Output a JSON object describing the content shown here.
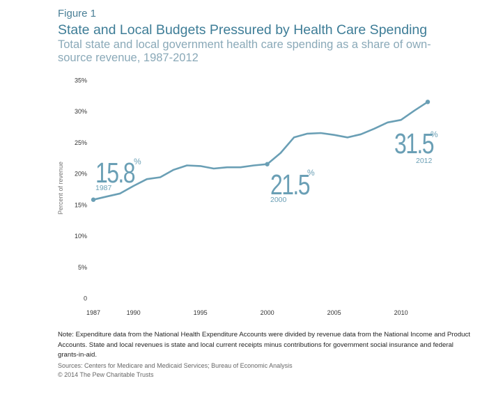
{
  "figure_label": "Figure 1",
  "title": "State and Local Budgets Pressured by Health Care Spending",
  "subtitle": "Total state and local government health care spending as a share of own-source revenue, 1987-2012",
  "note": "Note: Expenditure data from the National Health Expenditure Accounts were divided by revenue data from the National Income and Product Accounts. State and local revenues is state and local current receipts minus contributions for government social insurance and federal grants-in-aid.",
  "sources": "Sources: Centers for Medicare and Medicaid Services; Bureau of Economic Analysis",
  "copyright": "© 2014 The Pew Charitable Trusts",
  "colors": {
    "line": "#6a9fb5",
    "title": "#3e7d97",
    "subtitle": "#8aa9b8"
  },
  "chart_data": {
    "type": "line",
    "ylabel": "Percent of revenue",
    "ylim": [
      0,
      35
    ],
    "xlim": [
      1987,
      2012
    ],
    "y_ticks": [
      0,
      5,
      10,
      15,
      20,
      25,
      30,
      35
    ],
    "y_tick_labels": [
      "0",
      "5%",
      "10%",
      "15%",
      "20%",
      "25%",
      "30%",
      "35%"
    ],
    "x_ticks": [
      1987,
      1990,
      1995,
      2000,
      2005,
      2010
    ],
    "x_tick_labels": [
      "1987",
      "1990",
      "1995",
      "2000",
      "2005",
      "2010"
    ],
    "grid": false,
    "series": [
      {
        "x": [
          1987,
          1988,
          1989,
          1990,
          1991,
          1992,
          1993,
          1994,
          1995,
          1996,
          1997,
          1998,
          1999,
          2000,
          2001,
          2002,
          2003,
          2004,
          2005,
          2006,
          2007,
          2008,
          2009,
          2010,
          2011,
          2012
        ],
        "values": [
          15.8,
          16.3,
          16.8,
          18.0,
          19.1,
          19.4,
          20.6,
          21.3,
          21.2,
          20.8,
          21.0,
          21.0,
          21.3,
          21.5,
          23.3,
          25.8,
          26.4,
          26.5,
          26.2,
          25.8,
          26.3,
          27.2,
          28.2,
          28.6,
          30.1,
          31.5
        ]
      }
    ],
    "annotations": [
      {
        "x": 1987,
        "big": "15.8",
        "pct": "%",
        "year": "1987"
      },
      {
        "x": 2000,
        "big": "21.5",
        "pct": "%",
        "year": "2000"
      },
      {
        "x": 2012,
        "big": "31.5",
        "pct": "%",
        "year": "2012"
      }
    ]
  }
}
